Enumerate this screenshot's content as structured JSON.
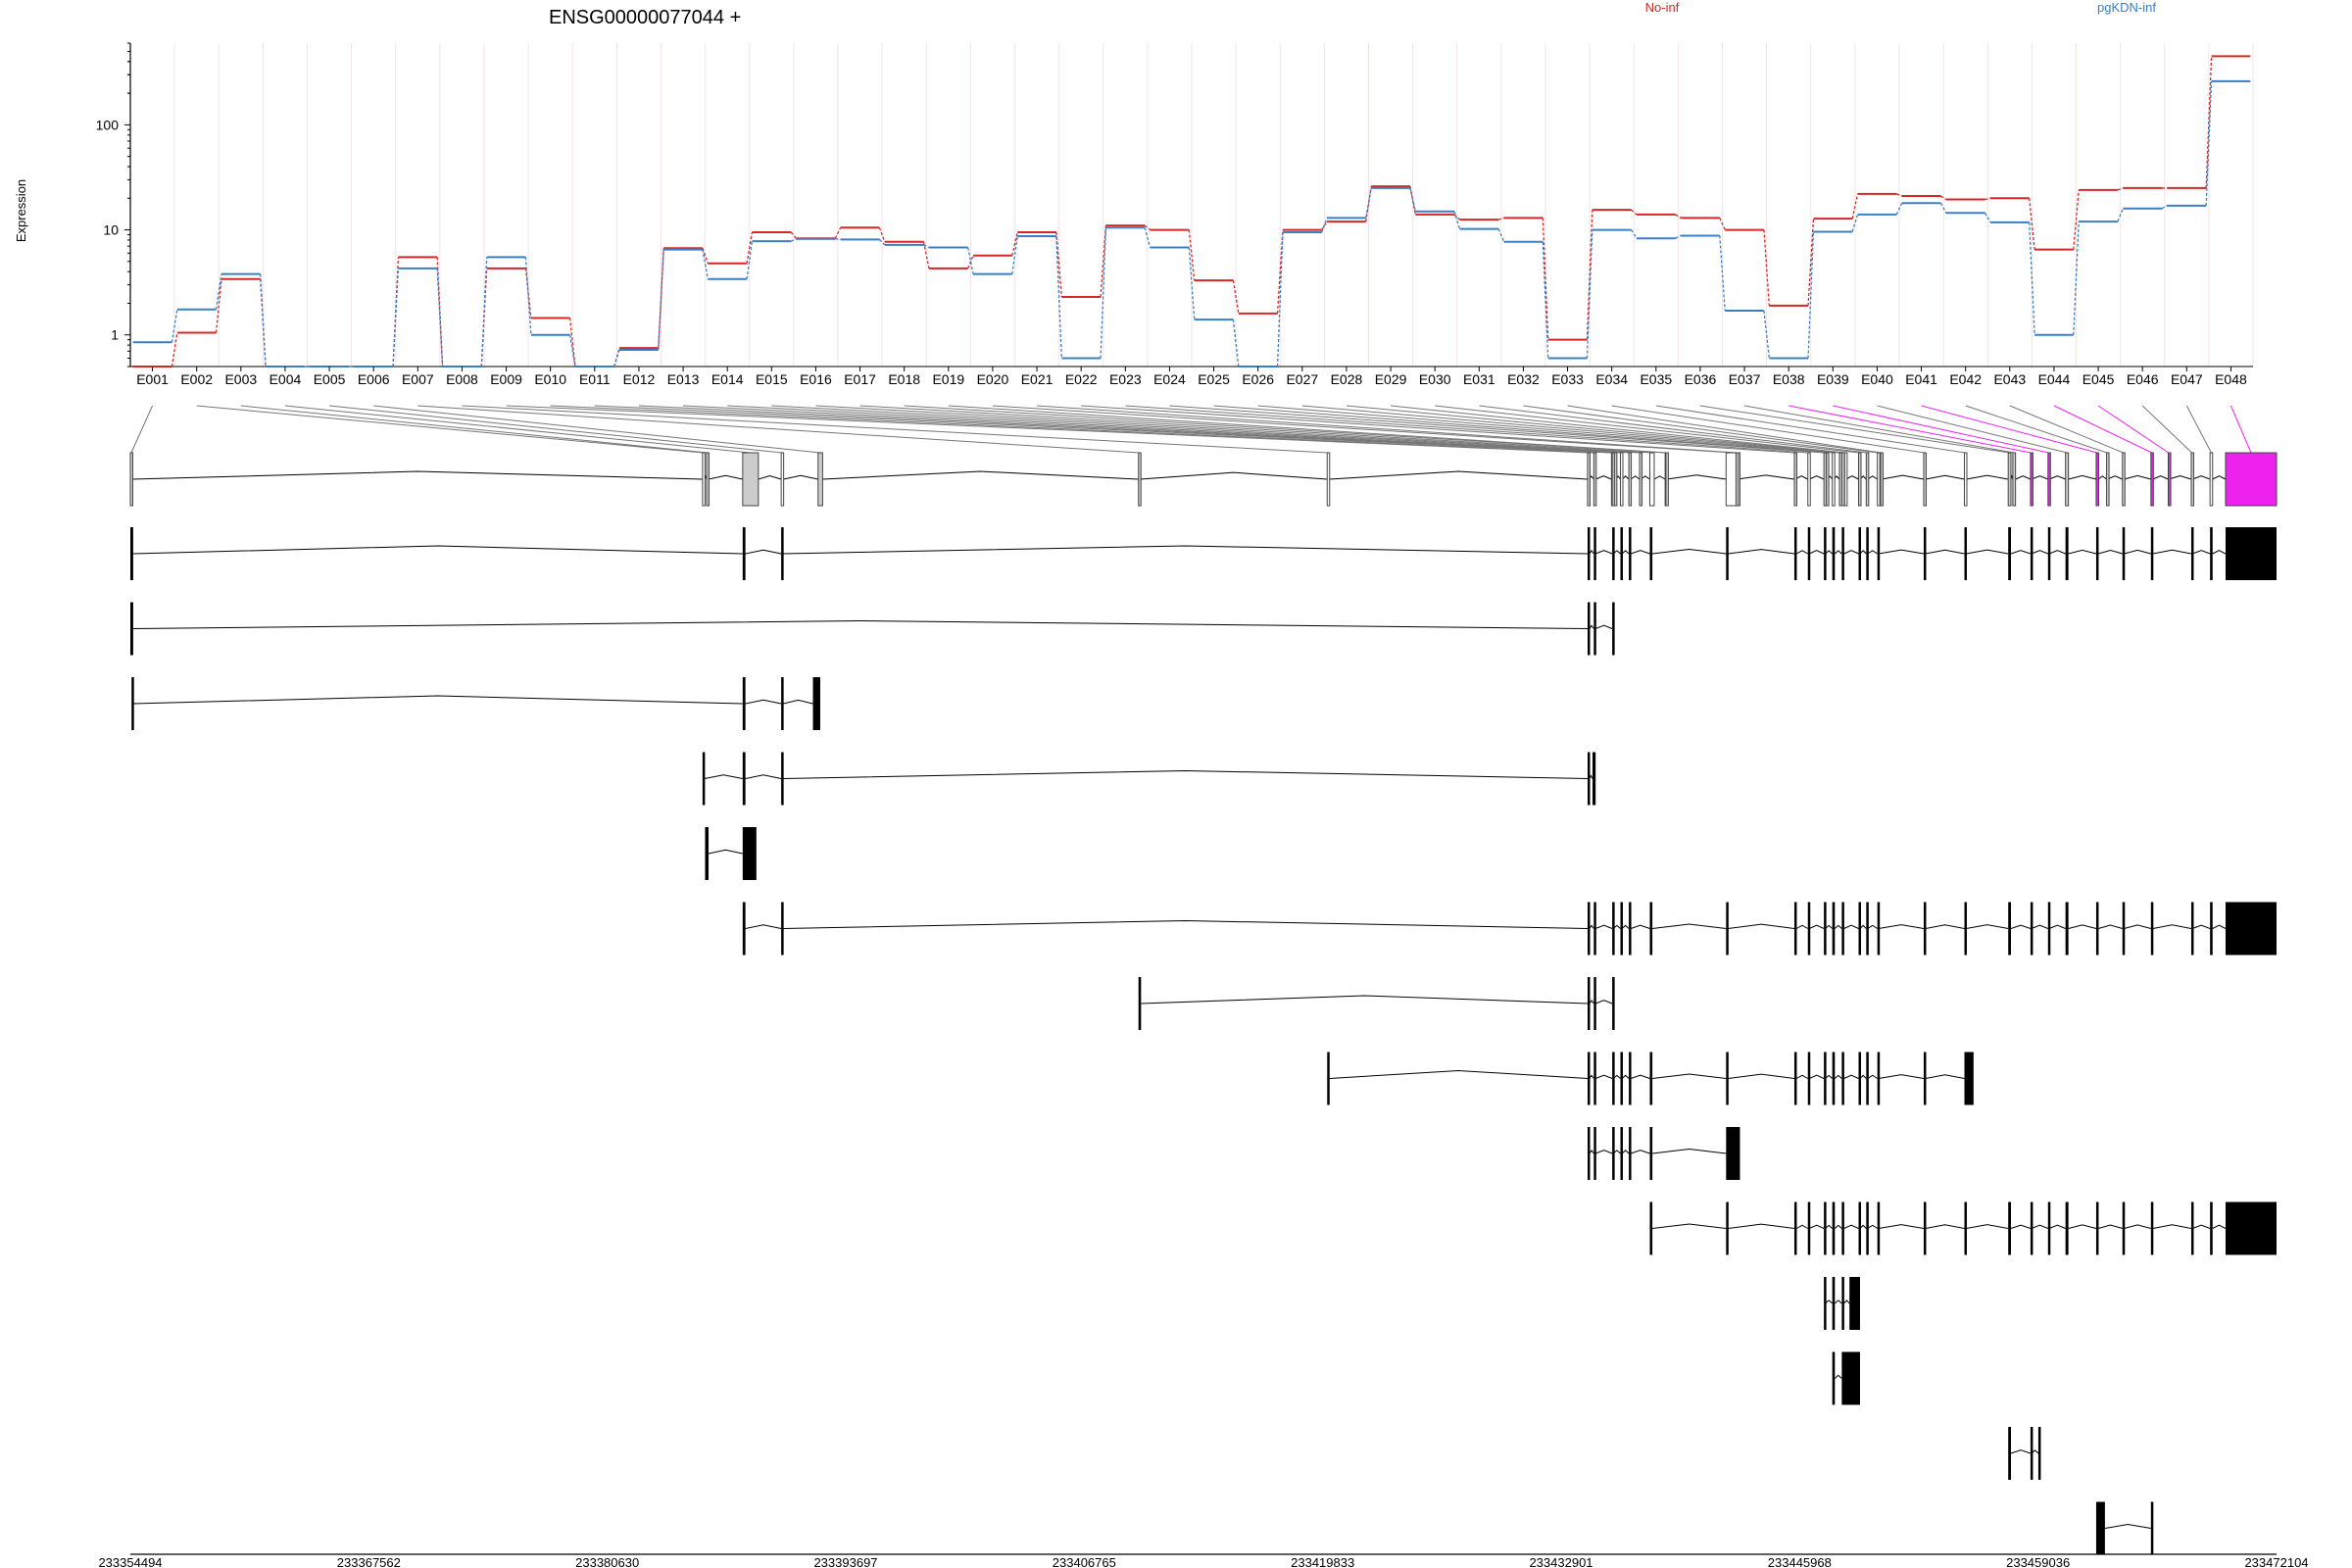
{
  "title": "ENSG00000077044 +",
  "legend": [
    {
      "name": "No-inf",
      "color": "#d62728"
    },
    {
      "name": "pgKDN-inf",
      "color": "#3a7fc4"
    }
  ],
  "colors": {
    "highlight": "#ee22ee",
    "exon_fill": "#cccccc",
    "feature": "#000000"
  },
  "chart_data": {
    "type": "line",
    "title": "ENSG00000077044 +",
    "ylabel": "Expression",
    "xlabel": "",
    "y_scale": "log",
    "ylim": [
      0.5,
      600
    ],
    "yticks": [
      "1",
      "10",
      "100"
    ],
    "legend_position": "top",
    "grid": true,
    "categories": [
      "E001",
      "E002",
      "E003",
      "E004",
      "E005",
      "E006",
      "E007",
      "E008",
      "E009",
      "E010",
      "E011",
      "E012",
      "E013",
      "E014",
      "E015",
      "E016",
      "E017",
      "E018",
      "E019",
      "E020",
      "E021",
      "E022",
      "E023",
      "E024",
      "E025",
      "E026",
      "E027",
      "E028",
      "E029",
      "E030",
      "E031",
      "E032",
      "E033",
      "E034",
      "E035",
      "E036",
      "E037",
      "E038",
      "E039",
      "E040",
      "E041",
      "E042",
      "E043",
      "E044",
      "E045",
      "E046",
      "E047",
      "E048"
    ],
    "series": [
      {
        "name": "No-inf",
        "values": [
          0.5,
          1.05,
          3.4,
          0.5,
          0.5,
          0.5,
          5.5,
          0.5,
          4.3,
          1.45,
          0.5,
          0.75,
          6.7,
          4.8,
          9.5,
          8.3,
          10.5,
          7.7,
          4.3,
          5.7,
          9.5,
          2.3,
          11,
          10,
          3.3,
          1.6,
          10,
          12,
          26,
          14,
          12.5,
          13,
          0.9,
          15.5,
          14,
          13,
          10,
          1.9,
          12.8,
          22,
          21,
          19.5,
          20,
          6.5,
          24,
          25,
          25,
          450
        ]
      },
      {
        "name": "pgKDN-inf",
        "values": [
          0.85,
          1.75,
          3.8,
          0.5,
          0.5,
          0.5,
          4.3,
          0.5,
          5.5,
          1.0,
          0.5,
          0.72,
          6.5,
          3.4,
          7.8,
          8.2,
          8.1,
          7.2,
          6.8,
          3.8,
          8.7,
          0.6,
          10.5,
          6.8,
          1.4,
          0.5,
          9.5,
          13,
          25,
          15,
          10.2,
          7.7,
          0.6,
          10,
          8.3,
          8.8,
          1.7,
          0.6,
          9.6,
          14,
          18,
          14.5,
          11.8,
          1.0,
          12,
          16,
          17,
          260
        ]
      }
    ],
    "highlighted_exons": [
      "E038",
      "E039",
      "E041",
      "E044",
      "E045",
      "E048"
    ],
    "genomic_axis": {
      "range": [
        233354494,
        233472104
      ],
      "tick_labels": [
        "233354494",
        "233367562",
        "233380630",
        "233393697",
        "233406765",
        "233419833",
        "233432901",
        "233445968",
        "233459036",
        "233472104"
      ]
    },
    "exon_bins_bp": [
      [
        233354494,
        233354600
      ],
      [
        233385850,
        233385950
      ],
      [
        233386070,
        233386180
      ],
      [
        233388050,
        233388910
      ],
      [
        233390160,
        233390280
      ],
      [
        233392180,
        233392430
      ],
      [
        233409740,
        233409820
      ],
      [
        233420080,
        233420200
      ],
      [
        233434350,
        233434430
      ],
      [
        233434690,
        233434790
      ],
      [
        233435660,
        233435710
      ],
      [
        233435700,
        233435760
      ],
      [
        233435820,
        233435890
      ],
      [
        233436150,
        233436240
      ],
      [
        233436610,
        233436720
      ],
      [
        233437200,
        233437260
      ],
      [
        233437760,
        233438000
      ],
      [
        233438600,
        233438620
      ],
      [
        233438640,
        233438680
      ],
      [
        233441940,
        233442700
      ],
      [
        233442480,
        233442550
      ],
      [
        233445680,
        233445720
      ],
      [
        233446420,
        233446500
      ],
      [
        233447300,
        233447380
      ],
      [
        233447430,
        233447500
      ],
      [
        233447760,
        233447840
      ],
      [
        233448150,
        233448180
      ],
      [
        233448280,
        233448430
      ],
      [
        233448440,
        233448500
      ],
      [
        233449200,
        233449280
      ],
      [
        233449620,
        233449700
      ],
      [
        233450230,
        233450300
      ],
      [
        233450410,
        233450460
      ],
      [
        233452770,
        233452870
      ],
      [
        233455000,
        233455100
      ],
      [
        233457400,
        233457550
      ],
      [
        233457650,
        233457800
      ],
      [
        233458620,
        233458680
      ],
      [
        233459580,
        233459650
      ],
      [
        233460540,
        233460700
      ],
      [
        233462220,
        233462340
      ],
      [
        233462790,
        233462840
      ],
      [
        233463660,
        233463750
      ],
      [
        233465220,
        233465330
      ],
      [
        233466170,
        233466200
      ],
      [
        233467430,
        233467500
      ],
      [
        233468460,
        233468600
      ],
      [
        233469310,
        233472104
      ]
    ],
    "transcripts": [
      {
        "exons": [
          [
            233354494,
            233354650
          ],
          [
            233388050,
            233388200
          ],
          [
            233390160,
            233390280
          ],
          [
            233434350,
            233434450
          ],
          [
            233434690,
            233434790
          ],
          [
            233435700,
            233435760
          ],
          [
            233436150,
            233436240
          ],
          [
            233436610,
            233436720
          ],
          [
            233437760,
            233437900
          ],
          [
            233441940,
            233442050
          ],
          [
            233445680,
            233445800
          ],
          [
            233446420,
            233446500
          ],
          [
            233447300,
            233447380
          ],
          [
            233447760,
            233447900
          ],
          [
            233448280,
            233448400
          ],
          [
            233449200,
            233449280
          ],
          [
            233449620,
            233449700
          ],
          [
            233450230,
            233450300
          ],
          [
            233452770,
            233452870
          ],
          [
            233455000,
            233455100
          ],
          [
            233457400,
            233457550
          ],
          [
            233458620,
            233458680
          ],
          [
            233459580,
            233459650
          ],
          [
            233460540,
            233460700
          ],
          [
            233462220,
            233462340
          ],
          [
            233463660,
            233463750
          ],
          [
            233465220,
            233465330
          ],
          [
            233467430,
            233467500
          ],
          [
            233468460,
            233468600
          ],
          [
            233469310,
            233472104
          ]
        ]
      },
      {
        "exons": [
          [
            233354494,
            233354650
          ],
          [
            233434350,
            233434450
          ],
          [
            233434690,
            233434790
          ],
          [
            233435700,
            233435760
          ]
        ]
      },
      {
        "exons": [
          [
            233354560,
            233354650
          ],
          [
            233388050,
            233388200
          ],
          [
            233390160,
            233390280
          ],
          [
            233391900,
            233392300
          ]
        ]
      },
      {
        "exons": [
          [
            233385850,
            233385950
          ],
          [
            233388050,
            233388200
          ],
          [
            233390160,
            233390280
          ],
          [
            233434350,
            233434450
          ],
          [
            233434620,
            233434790
          ]
        ]
      },
      {
        "exons": [
          [
            233385990,
            233386180
          ],
          [
            233388050,
            233388800
          ]
        ]
      },
      {
        "exons": [
          [
            233388050,
            233388200
          ],
          [
            233390160,
            233390280
          ],
          [
            233434350,
            233434450
          ],
          [
            233434690,
            233434790
          ],
          [
            233435700,
            233435760
          ],
          [
            233436150,
            233436240
          ],
          [
            233436610,
            233436720
          ],
          [
            233437760,
            233437900
          ],
          [
            233441940,
            233442050
          ],
          [
            233445680,
            233445800
          ],
          [
            233446420,
            233446500
          ],
          [
            233447300,
            233447380
          ],
          [
            233447760,
            233447900
          ],
          [
            233448280,
            233448400
          ],
          [
            233449200,
            233449280
          ],
          [
            233449620,
            233449700
          ],
          [
            233450230,
            233450300
          ],
          [
            233452770,
            233452870
          ],
          [
            233455000,
            233455100
          ],
          [
            233457400,
            233457550
          ],
          [
            233458620,
            233458680
          ],
          [
            233459580,
            233459650
          ],
          [
            233460540,
            233460700
          ],
          [
            233462220,
            233462340
          ],
          [
            233463660,
            233463750
          ],
          [
            233465220,
            233465330
          ],
          [
            233467430,
            233467500
          ],
          [
            233468460,
            233468600
          ],
          [
            233469310,
            233472104
          ]
        ]
      },
      {
        "exons": [
          [
            233409740,
            233409880
          ],
          [
            233434350,
            233434450
          ],
          [
            233434690,
            233434790
          ],
          [
            233435700,
            233435760
          ]
        ]
      },
      {
        "exons": [
          [
            233420080,
            233420200
          ],
          [
            233434350,
            233434450
          ],
          [
            233434690,
            233434790
          ],
          [
            233435700,
            233435760
          ],
          [
            233436150,
            233436240
          ],
          [
            233436610,
            233436720
          ],
          [
            233437760,
            233437900
          ],
          [
            233441940,
            233442050
          ],
          [
            233445680,
            233445800
          ],
          [
            233446420,
            233446500
          ],
          [
            233447300,
            233447380
          ],
          [
            233447760,
            233447900
          ],
          [
            233448280,
            233448400
          ],
          [
            233449200,
            233449280
          ],
          [
            233449620,
            233449700
          ],
          [
            233450230,
            233450300
          ],
          [
            233452770,
            233452870
          ],
          [
            233455000,
            233455500
          ]
        ]
      },
      {
        "exons": [
          [
            233434350,
            233434450
          ],
          [
            233434690,
            233434790
          ],
          [
            233435700,
            233435760
          ],
          [
            233436150,
            233436240
          ],
          [
            233436610,
            233436720
          ],
          [
            233437760,
            233437900
          ],
          [
            233441940,
            233442700
          ]
        ]
      },
      {
        "exons": [
          [
            233437760,
            233437900
          ],
          [
            233441940,
            233442050
          ],
          [
            233445680,
            233445800
          ],
          [
            233446420,
            233446500
          ],
          [
            233447300,
            233447380
          ],
          [
            233447760,
            233447900
          ],
          [
            233448280,
            233448400
          ],
          [
            233449200,
            233449280
          ],
          [
            233449620,
            233449700
          ],
          [
            233450230,
            233450300
          ],
          [
            233452770,
            233452870
          ],
          [
            233455000,
            233455100
          ],
          [
            233457400,
            233457550
          ],
          [
            233458620,
            233458680
          ],
          [
            233459580,
            233459650
          ],
          [
            233460540,
            233460700
          ],
          [
            233462220,
            233462340
          ],
          [
            233463660,
            233463750
          ],
          [
            233465220,
            233465330
          ],
          [
            233467430,
            233467500
          ],
          [
            233468460,
            233468600
          ],
          [
            233469310,
            233472104
          ]
        ]
      },
      {
        "exons": [
          [
            233447300,
            233447380
          ],
          [
            233447760,
            233447900
          ],
          [
            233448280,
            233448400
          ],
          [
            233448700,
            233449280
          ]
        ]
      },
      {
        "exons": [
          [
            233447760,
            233447900
          ],
          [
            233448280,
            233449280
          ]
        ]
      },
      {
        "exons": [
          [
            233457400,
            233457550
          ],
          [
            233458620,
            233458680
          ],
          [
            233459050,
            233459150
          ]
        ]
      },
      {
        "exons": [
          [
            233462220,
            233462700
          ],
          [
            233465220,
            233465330
          ]
        ]
      }
    ]
  }
}
